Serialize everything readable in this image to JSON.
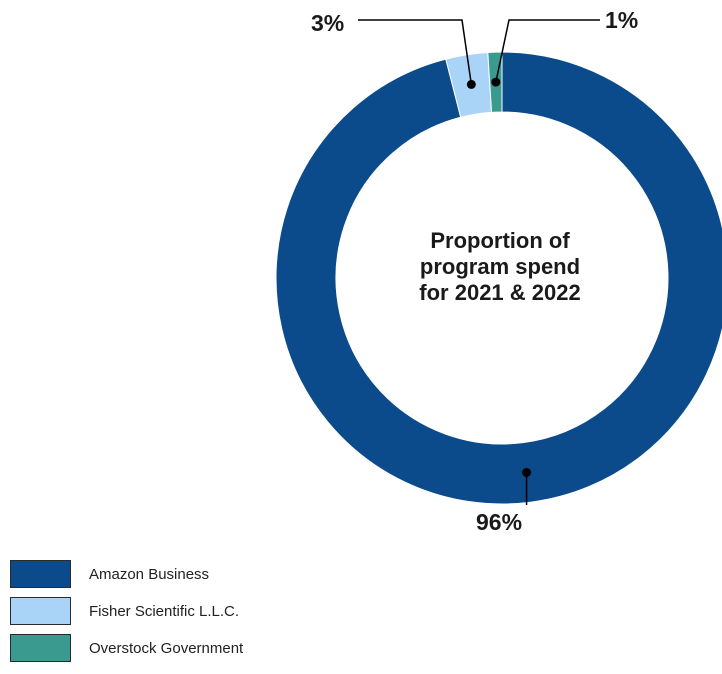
{
  "chart_data": {
    "type": "pie",
    "title_lines": [
      "Proportion of",
      "program spend",
      "for 2021 & 2022"
    ],
    "slices": [
      {
        "name": "Amazon Business",
        "value": 96,
        "label": "96%",
        "color": "#0b4a8b"
      },
      {
        "name": "Fisher Scientific L.L.C.",
        "value": 3,
        "label": "3%",
        "color": "#a9d3f7"
      },
      {
        "name": "Overstock Government",
        "value": 1,
        "label": "1%",
        "color": "#3a9a8f"
      }
    ],
    "donut": true,
    "legend_position": "bottom-left"
  }
}
